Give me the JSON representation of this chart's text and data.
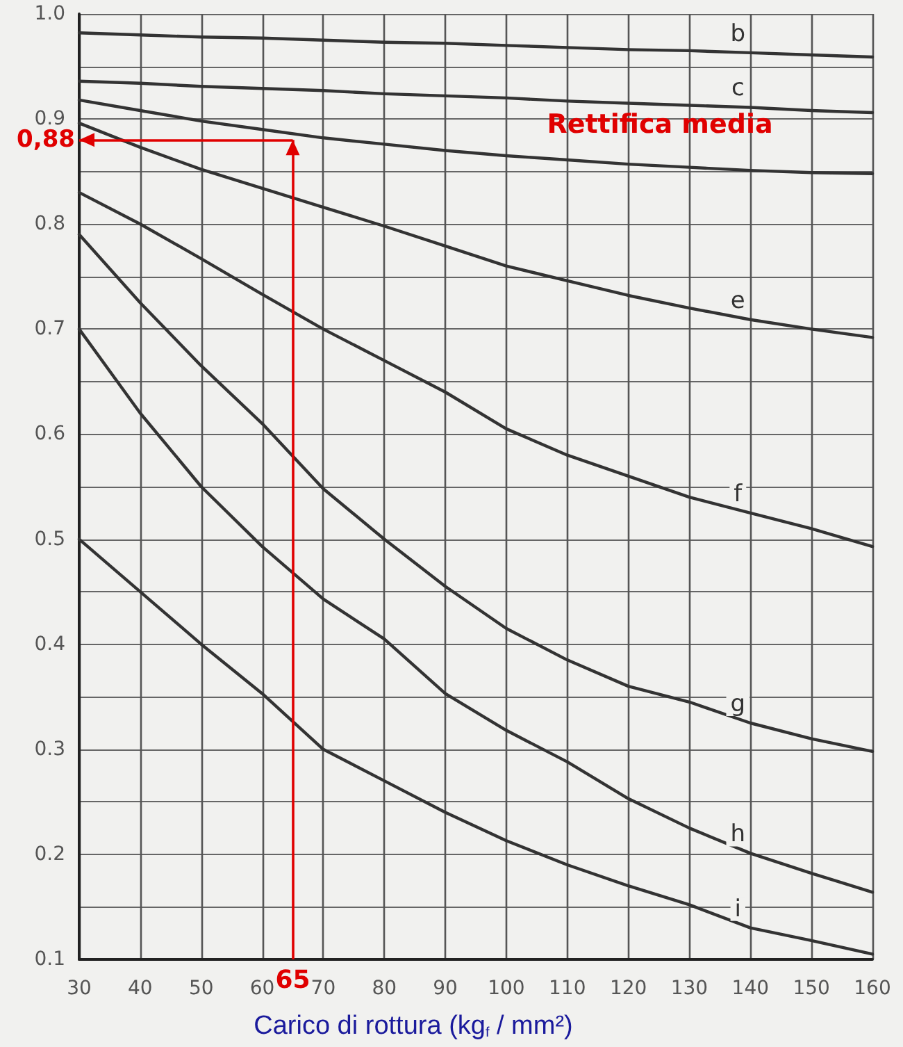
{
  "chart_data": {
    "type": "line",
    "xlabel": "Carico di rottura (kg$_{f}$ / mm²)",
    "x": [
      30,
      40,
      50,
      60,
      70,
      80,
      90,
      100,
      110,
      120,
      130,
      140,
      150,
      160
    ],
    "series": [
      {
        "name": "b",
        "color": "#333333",
        "values": [
          0.982,
          0.98,
          0.978,
          0.977,
          0.975,
          0.973,
          0.972,
          0.97,
          0.968,
          0.966,
          0.965,
          0.963,
          0.961,
          0.959
        ]
      },
      {
        "name": "c",
        "color": "#333333",
        "values": [
          0.936,
          0.934,
          0.931,
          0.929,
          0.927,
          0.924,
          0.922,
          0.92,
          0.917,
          0.915,
          0.913,
          0.911,
          0.908,
          0.906
        ]
      },
      {
        "color": "#333333",
        "values": [
          0.918,
          0.908,
          0.898,
          0.89,
          0.882,
          0.876,
          0.87,
          0.865,
          0.861,
          0.857,
          0.854,
          0.851,
          0.849,
          0.848
        ]
      },
      {
        "name": "e",
        "color": "#333333",
        "values": [
          0.896,
          0.873,
          0.852,
          0.834,
          0.816,
          0.798,
          0.779,
          0.76,
          0.746,
          0.732,
          0.72,
          0.709,
          0.7,
          0.692
        ]
      },
      {
        "name": "f",
        "color": "#333333",
        "values": [
          0.83,
          0.8,
          0.767,
          0.733,
          0.7,
          0.67,
          0.64,
          0.605,
          0.58,
          0.56,
          0.54,
          0.525,
          0.51,
          0.493
        ]
      },
      {
        "name": "g",
        "color": "#333333",
        "values": [
          0.79,
          0.725,
          0.665,
          0.61,
          0.548,
          0.5,
          0.455,
          0.415,
          0.385,
          0.36,
          0.345,
          0.325,
          0.31,
          0.298
        ]
      },
      {
        "name": "h",
        "color": "#333333",
        "values": [
          0.7,
          0.62,
          0.55,
          0.493,
          0.443,
          0.405,
          0.353,
          0.318,
          0.288,
          0.253,
          0.225,
          0.201,
          0.182,
          0.164
        ]
      },
      {
        "name": "i",
        "color": "#333333",
        "values": [
          0.5,
          0.45,
          0.4,
          0.353,
          0.3,
          0.27,
          0.24,
          0.213,
          0.19,
          0.17,
          0.152,
          0.13,
          0.118,
          0.105
        ]
      }
    ],
    "annotations": [
      "Rettifica media"
    ],
    "ref_lines": [
      {
        "axis": "y",
        "value": 0.88,
        "label": "0,88",
        "color": "#e00000"
      },
      {
        "axis": "x",
        "value": 65,
        "label": "65",
        "color": "#e00000"
      }
    ],
    "xlim": [
      30,
      160
    ],
    "xticks": [
      30,
      40,
      50,
      60,
      70,
      80,
      90,
      100,
      110,
      120,
      130,
      140,
      150,
      160
    ],
    "ylim": [
      0.1,
      1
    ],
    "yticks": [
      0.1,
      {
        "value": 0.15,
        "label": null
      },
      0.2,
      {
        "value": 0.25,
        "label": null
      },
      0.3,
      {
        "value": 0.35,
        "label": null
      },
      0.4,
      {
        "value": 0.45,
        "label": null
      },
      0.5,
      {
        "value": 0.55,
        "label": null
      },
      0.6,
      {
        "value": 0.65,
        "label": null
      },
      0.7,
      {
        "value": 0.75,
        "label": null
      },
      0.8,
      {
        "value": 0.85,
        "label": null
      },
      0.9,
      {
        "value": 0.95,
        "label": null
      },
      {
        "value": 1,
        "label": "1.0"
      }
    ],
    "grid": true,
    "legend": false,
    "marker": "none",
    "line_style": "solid"
  }
}
